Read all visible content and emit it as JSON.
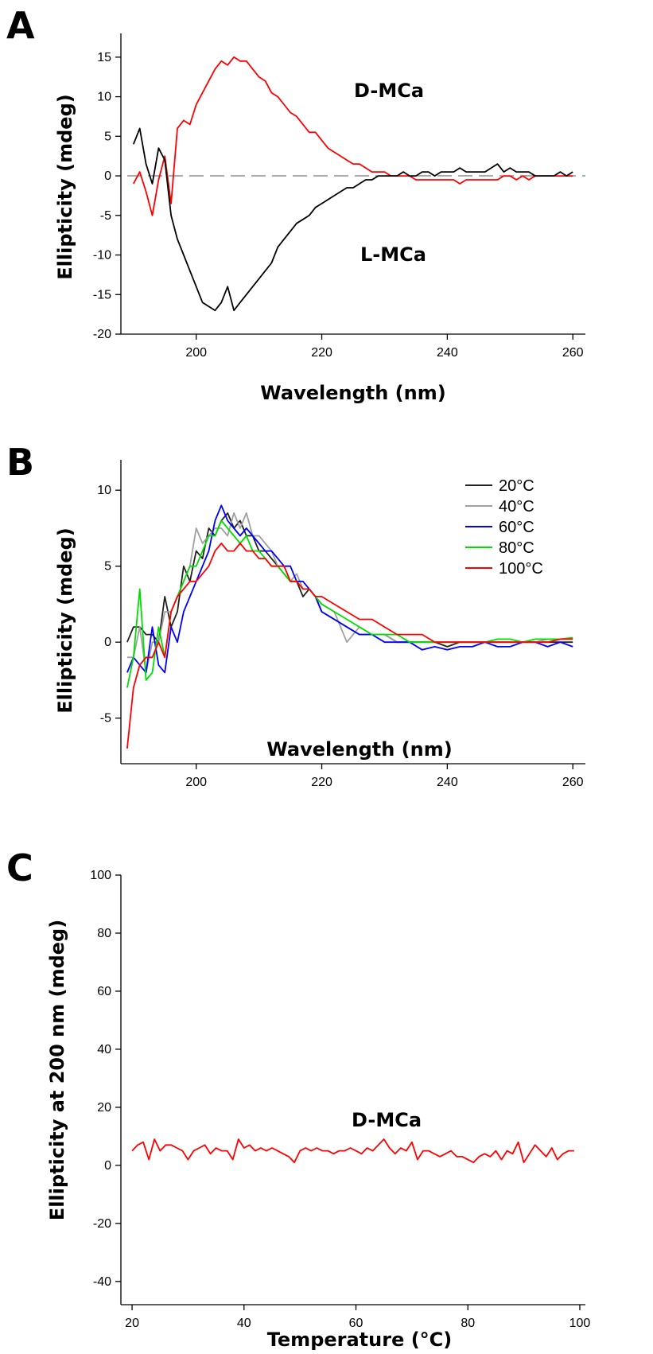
{
  "chart_data": [
    {
      "panel": "A",
      "type": "line",
      "xlabel": "Wavelength (nm)",
      "ylabel": "Ellipticity (mdeg)",
      "xlim": [
        188,
        262
      ],
      "ylim": [
        -20,
        18
      ],
      "xticks": [
        200,
        220,
        240,
        260
      ],
      "yticks": [
        -20,
        -15,
        -10,
        -5,
        0,
        5,
        10,
        15
      ],
      "zero_line": "dashed",
      "annotations": [
        "D-MCa",
        "L-MCa"
      ],
      "series": [
        {
          "color": "#ff0000",
          "x": [
            190,
            191,
            192,
            193,
            194,
            195,
            196,
            197,
            198,
            199,
            200,
            201,
            202,
            203,
            204,
            205,
            206,
            207,
            208,
            209,
            210,
            211,
            212,
            213,
            214,
            215,
            216,
            217,
            218,
            219,
            220,
            221,
            222,
            223,
            224,
            225,
            226,
            227,
            228,
            229,
            230,
            231,
            232,
            233,
            234,
            235,
            236,
            237,
            238,
            239,
            240,
            241,
            242,
            243,
            244,
            245,
            246,
            247,
            248,
            249,
            250,
            251,
            252,
            253,
            254,
            255,
            256,
            257,
            258,
            259,
            260
          ],
          "y": [
            -1,
            0.5,
            -2,
            -5,
            -0.5,
            2.5,
            -3.5,
            6,
            7,
            6.5,
            9,
            10.5,
            12,
            13.5,
            14.5,
            14,
            15,
            14.5,
            14.5,
            13.5,
            12.5,
            12,
            10.5,
            10,
            9,
            8,
            7.5,
            6.5,
            5.5,
            5.5,
            4.5,
            3.5,
            3,
            2.5,
            2,
            1.5,
            1.5,
            1,
            0.5,
            0.5,
            0.5,
            0,
            0,
            0,
            0,
            -0.5,
            -0.5,
            -0.5,
            -0.5,
            -0.5,
            -0.5,
            -0.5,
            -1,
            -0.5,
            -0.5,
            -0.5,
            -0.5,
            -0.5,
            -0.5,
            0,
            0,
            -0.5,
            0,
            -0.5,
            0,
            0,
            0,
            0,
            0,
            0,
            0
          ]
        },
        {
          "color": "#000000",
          "x": [
            190,
            191,
            192,
            193,
            194,
            195,
            196,
            197,
            198,
            199,
            200,
            201,
            202,
            203,
            204,
            205,
            206,
            207,
            208,
            209,
            210,
            211,
            212,
            213,
            214,
            215,
            216,
            217,
            218,
            219,
            220,
            221,
            222,
            223,
            224,
            225,
            226,
            227,
            228,
            229,
            230,
            231,
            232,
            233,
            234,
            235,
            236,
            237,
            238,
            239,
            240,
            241,
            242,
            243,
            244,
            245,
            246,
            247,
            248,
            249,
            250,
            251,
            252,
            253,
            254,
            255,
            256,
            257,
            258,
            259,
            260
          ],
          "y": [
            4,
            6,
            1.5,
            -1,
            3.5,
            2,
            -5,
            -8,
            -10,
            -12,
            -14,
            -16,
            -16.5,
            -17,
            -16,
            -14,
            -17,
            -16,
            -15,
            -14,
            -13,
            -12,
            -11,
            -9,
            -8,
            -7,
            -6,
            -5.5,
            -5,
            -4,
            -3.5,
            -3,
            -2.5,
            -2,
            -1.5,
            -1.5,
            -1,
            -0.5,
            -0.5,
            0,
            0,
            0,
            0,
            0.5,
            0,
            0,
            0.5,
            0.5,
            0,
            0.5,
            0.5,
            0.5,
            1,
            0.5,
            0.5,
            0.5,
            0.5,
            1,
            1.5,
            0.5,
            1,
            0.5,
            0.5,
            0.5,
            0,
            0,
            0,
            0,
            0.5,
            0,
            0.5
          ]
        }
      ]
    },
    {
      "panel": "B",
      "type": "line",
      "xlabel": "Wavelength (nm)",
      "ylabel": "Ellipticity (mdeg)",
      "xlim": [
        188,
        262
      ],
      "ylim": [
        -8,
        12
      ],
      "xticks": [
        200,
        220,
        240,
        260
      ],
      "yticks": [
        -5,
        0,
        5,
        10
      ],
      "legend": "top-right",
      "series": [
        {
          "name": "20°C",
          "color": "#222222",
          "x": [
            189,
            190,
            191,
            192,
            193,
            194,
            195,
            196,
            197,
            198,
            199,
            200,
            201,
            202,
            203,
            204,
            205,
            206,
            207,
            208,
            209,
            210,
            211,
            212,
            213,
            214,
            215,
            216,
            217,
            218,
            219,
            220,
            222,
            224,
            226,
            228,
            230,
            232,
            234,
            236,
            238,
            240,
            242,
            244,
            246,
            248,
            250,
            252,
            254,
            256,
            258,
            260
          ],
          "y": [
            0,
            1,
            1,
            0.5,
            0.5,
            0,
            3,
            1,
            2,
            5,
            4,
            6,
            5.5,
            7.5,
            7,
            8,
            8.5,
            7.5,
            8,
            7,
            7,
            6,
            6,
            5.5,
            5,
            4.5,
            4,
            4,
            3,
            3.5,
            3,
            2,
            1.5,
            1,
            0.5,
            0.5,
            0.5,
            0,
            0,
            0,
            0,
            -0.3,
            0,
            0,
            0,
            0,
            0,
            0,
            0,
            0,
            0,
            0
          ]
        },
        {
          "name": "40°C",
          "color": "#a0a0a0",
          "x": [
            189,
            190,
            191,
            192,
            193,
            194,
            195,
            196,
            197,
            198,
            199,
            200,
            201,
            202,
            203,
            204,
            205,
            206,
            207,
            208,
            209,
            210,
            211,
            212,
            213,
            214,
            215,
            216,
            217,
            218,
            219,
            220,
            222,
            224,
            226,
            228,
            230,
            232,
            234,
            236,
            238,
            240,
            242,
            244,
            246,
            248,
            250,
            252,
            254,
            256,
            258,
            260
          ],
          "y": [
            -1,
            -1,
            1,
            -2,
            0,
            0,
            2,
            2,
            3,
            4,
            5,
            7.5,
            6.5,
            7,
            7.5,
            7.5,
            7,
            8.5,
            7.5,
            8.5,
            7,
            7,
            6.5,
            6,
            5,
            5,
            4,
            4.5,
            3.5,
            3.5,
            3,
            2.5,
            2,
            0,
            1,
            0.5,
            0.5,
            0,
            0,
            0,
            0,
            0,
            0,
            0,
            0,
            0,
            0,
            0,
            0,
            0.2,
            0.2,
            0.2
          ]
        },
        {
          "name": "60°C",
          "color": "#0000ff",
          "x": [
            189,
            190,
            191,
            192,
            193,
            194,
            195,
            196,
            197,
            198,
            199,
            200,
            201,
            202,
            203,
            204,
            205,
            206,
            207,
            208,
            209,
            210,
            211,
            212,
            213,
            214,
            215,
            216,
            217,
            218,
            219,
            220,
            222,
            224,
            226,
            228,
            230,
            232,
            234,
            236,
            238,
            240,
            242,
            244,
            246,
            248,
            250,
            252,
            254,
            256,
            258,
            260
          ],
          "y": [
            -2,
            -1,
            -1.5,
            -2,
            1,
            -1.5,
            -2,
            1,
            0,
            2,
            3,
            4,
            5,
            6,
            8,
            9,
            8,
            7.5,
            7,
            7.5,
            7,
            6.5,
            6,
            6,
            5.5,
            5,
            5,
            4,
            4,
            3.5,
            3,
            2,
            1.5,
            1,
            0.5,
            0.5,
            0,
            0,
            0,
            -0.5,
            -0.3,
            -0.5,
            -0.3,
            -0.3,
            0,
            -0.3,
            -0.3,
            0,
            0,
            -0.3,
            0,
            -0.3
          ]
        },
        {
          "name": "80°C",
          "color": "#00dd00",
          "x": [
            189,
            190,
            191,
            192,
            193,
            194,
            195,
            196,
            197,
            198,
            199,
            200,
            201,
            202,
            203,
            204,
            205,
            206,
            207,
            208,
            209,
            210,
            211,
            212,
            213,
            214,
            215,
            216,
            217,
            218,
            219,
            220,
            222,
            224,
            226,
            228,
            230,
            232,
            234,
            236,
            238,
            240,
            242,
            244,
            246,
            248,
            250,
            252,
            254,
            256,
            258,
            260
          ],
          "y": [
            -3,
            -1,
            3.5,
            -2.5,
            -2,
            1,
            -1,
            2,
            3,
            4,
            5,
            5,
            6,
            7,
            7,
            8,
            7.5,
            7,
            6.5,
            7,
            6,
            6,
            5.5,
            5,
            5,
            4.5,
            4,
            4,
            3.5,
            3.5,
            3,
            2.5,
            2,
            1.5,
            1,
            0.5,
            0.5,
            0.5,
            0,
            0,
            0,
            0,
            0,
            0,
            0,
            0.2,
            0.2,
            0,
            0.2,
            0.2,
            0.2,
            0.3
          ]
        },
        {
          "name": "100°C",
          "color": "#ff0000",
          "x": [
            189,
            190,
            191,
            192,
            193,
            194,
            195,
            196,
            197,
            198,
            199,
            200,
            201,
            202,
            203,
            204,
            205,
            206,
            207,
            208,
            209,
            210,
            211,
            212,
            213,
            214,
            215,
            216,
            217,
            218,
            219,
            220,
            222,
            224,
            226,
            228,
            230,
            232,
            234,
            236,
            238,
            240,
            242,
            244,
            246,
            248,
            250,
            252,
            254,
            256,
            258,
            260
          ],
          "y": [
            -7,
            -3,
            -1.5,
            -1,
            -1,
            0,
            -1,
            2,
            3,
            3.5,
            4,
            4,
            4.5,
            5,
            6,
            6.5,
            6,
            6,
            6.5,
            6,
            6,
            5.5,
            5.5,
            5,
            5,
            5,
            4,
            4,
            3.5,
            3.5,
            3,
            3,
            2.5,
            2,
            1.5,
            1.5,
            1,
            0.5,
            0.5,
            0.5,
            0,
            0,
            0,
            0,
            0,
            0,
            0,
            0,
            0,
            0,
            0.2,
            0.2
          ]
        }
      ]
    },
    {
      "panel": "C",
      "type": "line",
      "xlabel": "Temperature (°C)",
      "ylabel": "Ellipticity at 200 nm (mdeg)",
      "xlim": [
        18,
        101
      ],
      "ylim": [
        -48,
        100
      ],
      "xticks": [
        20,
        40,
        60,
        80,
        100
      ],
      "yticks": [
        -40,
        -20,
        0,
        20,
        40,
        60,
        80,
        100
      ],
      "annotations": [
        "D-MCa"
      ],
      "series": [
        {
          "color": "#ff0000",
          "x": [
            20,
            21,
            22,
            23,
            24,
            25,
            26,
            27,
            28,
            29,
            30,
            31,
            32,
            33,
            34,
            35,
            36,
            37,
            38,
            39,
            40,
            41,
            42,
            43,
            44,
            45,
            46,
            47,
            48,
            49,
            50,
            51,
            52,
            53,
            54,
            55,
            56,
            57,
            58,
            59,
            60,
            61,
            62,
            63,
            64,
            65,
            66,
            67,
            68,
            69,
            70,
            71,
            72,
            73,
            74,
            75,
            76,
            77,
            78,
            79,
            80,
            81,
            82,
            83,
            84,
            85,
            86,
            87,
            88,
            89,
            90,
            91,
            92,
            93,
            94,
            95,
            96,
            97,
            98,
            99
          ],
          "y": [
            5,
            7,
            8,
            2,
            9,
            5,
            7,
            7,
            6,
            5,
            2,
            5,
            6,
            7,
            4,
            6,
            5,
            5,
            2,
            9,
            6,
            7,
            5,
            6,
            5,
            6,
            5,
            4,
            3,
            1,
            5,
            6,
            5,
            6,
            5,
            5,
            4,
            5,
            5,
            6,
            5,
            4,
            6,
            5,
            7,
            9,
            6,
            4,
            6,
            5,
            8,
            2,
            5,
            5,
            4,
            3,
            4,
            5,
            3,
            3,
            2,
            1,
            3,
            4,
            3,
            5,
            2,
            5,
            4,
            8,
            1,
            4,
            7,
            5,
            3,
            6,
            2,
            4,
            5,
            5
          ]
        }
      ]
    }
  ],
  "panels": [
    {
      "letter": "A",
      "xlabel": "Wavelength (nm)",
      "ylabel": "Ellipticity (mdeg)",
      "annotations": [
        "D-MCa",
        "L-MCa"
      ]
    },
    {
      "letter": "B",
      "xlabel": "Wavelength (nm)",
      "ylabel": "Ellipticity (mdeg)",
      "annotations": []
    },
    {
      "letter": "C",
      "xlabel": "Temperature (°C)",
      "ylabel": "Ellipticity at 200 nm (mdeg)",
      "annotations": [
        "D-MCa"
      ]
    }
  ]
}
